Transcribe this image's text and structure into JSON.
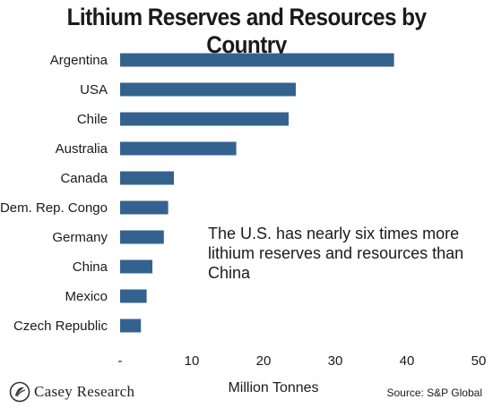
{
  "chart_data": {
    "type": "bar",
    "orientation": "horizontal",
    "title": "Lithium Reserves and Resources by Country",
    "xlabel": "Million Tonnes",
    "ylabel": "",
    "categories": [
      "Argentina",
      "USA",
      "Chile",
      "Australia",
      "Canada",
      "Dem. Rep. Congo",
      "Germany",
      "China",
      "Mexico",
      "Czech Republic"
    ],
    "values": [
      38.2,
      24.5,
      23.5,
      16.2,
      7.5,
      6.7,
      6.1,
      4.5,
      3.7,
      2.9
    ],
    "xlim": [
      0,
      50
    ],
    "x_ticks": [
      "-",
      "10",
      "20",
      "30",
      "40",
      "50"
    ],
    "grid": false,
    "bar_color": "#34628f",
    "annotation": "The U.S. has nearly six times more lithium reserves and resources than China",
    "source": "Source: S&P Global"
  },
  "branding": {
    "logo_text": "Casey Research"
  }
}
